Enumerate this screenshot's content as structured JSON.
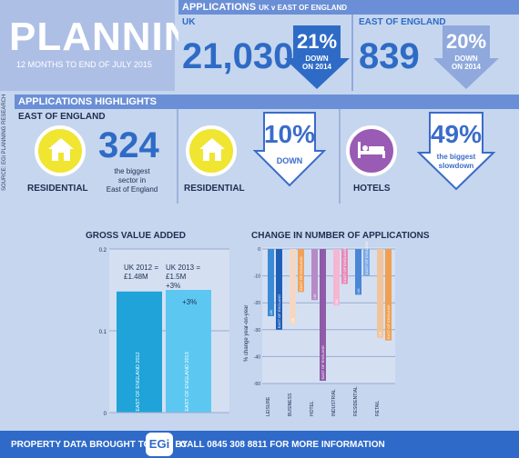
{
  "header": {
    "title": "PLANNING",
    "subtitle": "12 MONTHS TO END OF JULY 2015"
  },
  "applications": {
    "header_main": "APPLICATIONS",
    "header_sub": "UK v EAST OF ENGLAND",
    "uk": {
      "label": "UK",
      "value": "21,030",
      "pct": "21%",
      "down": "DOWN",
      "note": "ON 2014"
    },
    "ee": {
      "label": "EAST OF ENGLAND",
      "value": "839",
      "pct": "20%",
      "down": "DOWN",
      "note": "ON 2014"
    }
  },
  "source": "SOURCE: EGi PLANNING RESEARCH",
  "highlights": {
    "header": "APPLICATIONS HIGHLIGHTS",
    "region": "EAST OF ENGLAND",
    "item1": {
      "icon": "house-icon",
      "label": "RESIDENTIAL",
      "value": "324",
      "note1": "the biggest",
      "note2": "sector in",
      "note3": "East of England"
    },
    "item2": {
      "icon": "house-icon",
      "label": "RESIDENTIAL",
      "pct": "10%",
      "down": "DOWN"
    },
    "item3": {
      "icon": "bed-icon",
      "label": "HOTELS",
      "pct": "49%",
      "note1": "the biggest",
      "note2": "slowdown"
    }
  },
  "colors": {
    "blue": "#2e6bc6",
    "yellow": "#f0e530",
    "purple": "#9a5bb4",
    "panel": "#8fa9dd"
  },
  "chart_data": [
    {
      "type": "bar",
      "title": "GROSS VALUE ADDED",
      "categories": [
        "EAST OF ENGLAND 2012",
        "EAST OF ENGLAND 2013"
      ],
      "values": [
        1.48,
        1.5
      ],
      "yticks": [
        "0",
        "0.1",
        "0.2"
      ],
      "ylim": [
        0,
        2.0
      ],
      "annotations": [
        "UK 2012 = £1.48M",
        "UK 2013 = £1.5M +3%",
        "+3%"
      ],
      "ann1a": "UK 2012 =",
      "ann1b": "£1.48M",
      "ann2a": "UK 2013 =",
      "ann2b": "£1.5M",
      "ann2c": "+3%",
      "ann3": "+3%",
      "colors": [
        "#1fa3d8",
        "#5cc8f2"
      ]
    },
    {
      "type": "bar",
      "title": "CHANGE IN NUMBER OF APPLICATIONS",
      "ylabel": "% change year-on-year",
      "yticks": [
        "0",
        "-10",
        "-20",
        "-30",
        "-40",
        "-50"
      ],
      "ylim": [
        -50,
        0
      ],
      "categories": [
        "LEISURE",
        "BUSINESS",
        "HOTEL",
        "INDUSTRIAL",
        "RESIDENTIAL",
        "RETAIL"
      ],
      "series": [
        {
          "name": "UK",
          "values": [
            -25,
            -28,
            -19,
            -21,
            -17,
            -33
          ]
        },
        {
          "name": "EAST OF ENGLAND",
          "values": [
            -30,
            -16,
            -49,
            -13,
            -10,
            -34
          ]
        }
      ],
      "bar_tags": [
        "UK",
        "EAST OF ENGLAND"
      ],
      "colors": {
        "Leisure": [
          "#3a8bd6",
          "#1f5fb8"
        ],
        "Business": [
          "#f3d7c4",
          "#f1a25a"
        ],
        "Hotel": [
          "#b58ac7",
          "#8f5aa8"
        ],
        "Industrial": [
          "#f4b6d2",
          "#e888b8"
        ],
        "Residential": [
          "#4b86d8",
          "#79a8e6"
        ],
        "Retail": [
          "#f1c49c",
          "#f0a050"
        ]
      }
    }
  ],
  "footer": {
    "text1": "PROPERTY DATA BROUGHT TO YOU BY",
    "logo": "EGi",
    "text2": "CALL 0845 308 8811 FOR MORE INFORMATION"
  }
}
